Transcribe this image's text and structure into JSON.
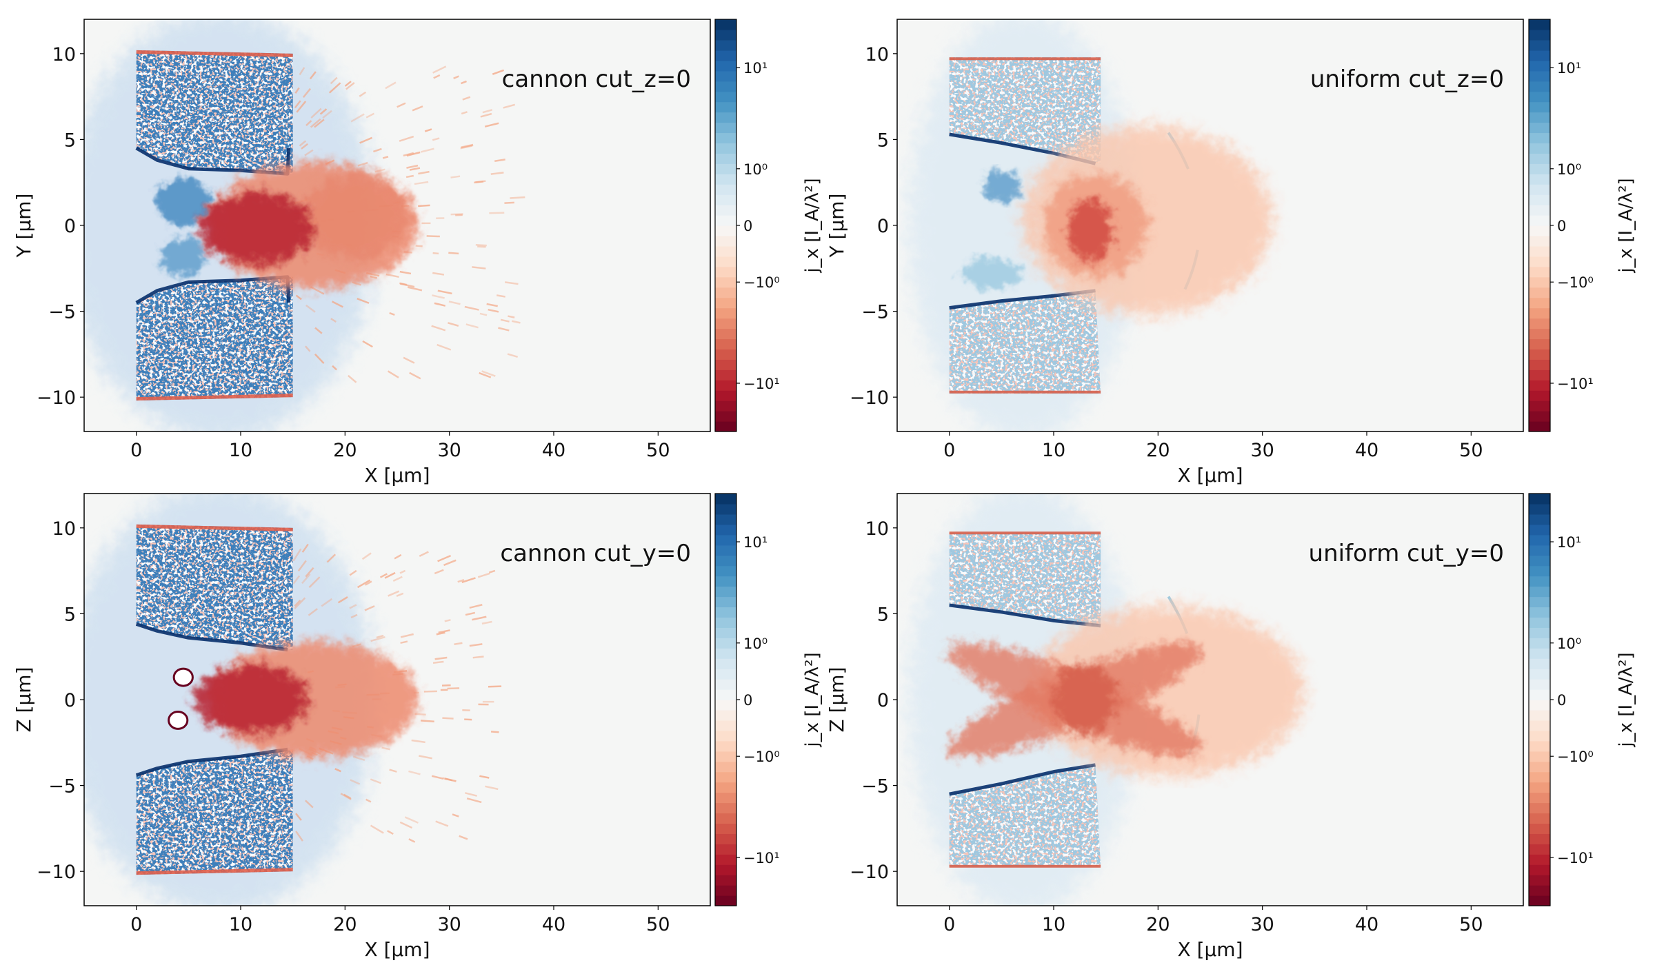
{
  "figure": {
    "colormap": [
      "#67001f",
      "#b2182b",
      "#d6604d",
      "#f4a582",
      "#fddbc7",
      "#f7f7f7",
      "#d1e5f0",
      "#92c5de",
      "#4393c3",
      "#2166ac",
      "#053061"
    ],
    "background_color": "#f5f6f5"
  },
  "chart_data": [
    {
      "type": "heatmap",
      "title": "cannon cut_z=0",
      "xlabel": "X  [μm]",
      "ylabel": "Y  [μm]",
      "xlim": [
        -5,
        55
      ],
      "ylim": [
        -12,
        12
      ],
      "xticks": [
        0,
        10,
        20,
        30,
        40,
        50
      ],
      "yticks": [
        10,
        5,
        0,
        -5,
        -10
      ],
      "grid": false,
      "colorbar": {
        "label": "j_x  [I_A/λ²]",
        "scale": "symlog",
        "linthresh": 1,
        "vmin": -30,
        "vmax": 30,
        "levels": 40,
        "ticks": [
          {
            "value": 10,
            "label": "10¹"
          },
          {
            "value": 1,
            "label": "10⁰"
          },
          {
            "value": 0,
            "label": "0"
          },
          {
            "value": -1,
            "label": "−10⁰"
          },
          {
            "value": -10,
            "label": "−10¹"
          }
        ]
      },
      "features": [
        {
          "kind": "ellipse",
          "cx": 8,
          "cy": 0,
          "rx": 15,
          "ry": 12.5,
          "color": "#c6dbef",
          "opacity": 0.7,
          "blur": 14
        },
        {
          "kind": "streaks",
          "x": [
            15,
            36
          ],
          "y": [
            -9,
            9
          ],
          "color": "#f4a582",
          "count": 140
        },
        {
          "kind": "ellipse",
          "cx": 4.5,
          "cy": 1.4,
          "rx": 2.6,
          "ry": 1.4,
          "color": "#4a8cc2",
          "opacity": 0.85,
          "blur": 4
        },
        {
          "kind": "ellipse",
          "cx": 4.5,
          "cy": -1.8,
          "rx": 2.2,
          "ry": 1.1,
          "color": "#5b9bcb",
          "opacity": 0.8,
          "blur": 4
        },
        {
          "kind": "target",
          "points": [
            [
              0,
              10.2
            ],
            [
              15,
              10
            ],
            [
              15,
              3
            ],
            [
              10,
              3.2
            ],
            [
              5,
              3.3
            ],
            [
              2,
              3.9
            ],
            [
              0,
              4.5
            ]
          ],
          "color": "#3d7fbb"
        },
        {
          "kind": "target",
          "points": [
            [
              0,
              -10.2
            ],
            [
              15,
              -10
            ],
            [
              15,
              -3
            ],
            [
              10,
              -3.2
            ],
            [
              5,
              -3.3
            ],
            [
              2,
              -3.9
            ],
            [
              0,
              -4.5
            ]
          ],
          "color": "#3d7fbb"
        },
        {
          "kind": "line",
          "points": [
            [
              0,
              10.1
            ],
            [
              15,
              9.9
            ]
          ],
          "color": "#e0604d",
          "width": 5
        },
        {
          "kind": "line",
          "points": [
            [
              0,
              -10.1
            ],
            [
              15,
              -9.9
            ]
          ],
          "color": "#e0604d",
          "width": 5
        },
        {
          "kind": "line",
          "points": [
            [
              0,
              4.5
            ],
            [
              2,
              3.8
            ],
            [
              5,
              3.3
            ],
            [
              10,
              3.2
            ],
            [
              14.5,
              3
            ],
            [
              14.6,
              4.5
            ]
          ],
          "color": "#08306b",
          "width": 5
        },
        {
          "kind": "line",
          "points": [
            [
              0,
              -4.5
            ],
            [
              2,
              -3.8
            ],
            [
              5,
              -3.3
            ],
            [
              10,
              -3.2
            ],
            [
              14.5,
              -3
            ],
            [
              14.6,
              -4.5
            ]
          ],
          "color": "#08306b",
          "width": 5
        },
        {
          "kind": "ellipse",
          "cx": 17,
          "cy": 0,
          "rx": 10,
          "ry": 3.7,
          "color": "#ee8a6e",
          "opacity": 0.85,
          "blur": 7
        },
        {
          "kind": "ellipse",
          "cx": 21,
          "cy": 0.5,
          "rx": 5,
          "ry": 2.5,
          "color": "#e7836a",
          "opacity": 0.7,
          "blur": 8
        },
        {
          "kind": "ellipse",
          "cx": 11.5,
          "cy": -0.2,
          "rx": 5.5,
          "ry": 2.1,
          "color": "#b8202e",
          "opacity": 0.85,
          "blur": 6
        }
      ]
    },
    {
      "type": "heatmap",
      "title": "uniform cut_z=0",
      "xlabel": "X  [μm]",
      "ylabel": "Y  [μm]",
      "xlim": [
        -5,
        55
      ],
      "ylim": [
        -12,
        12
      ],
      "xticks": [
        0,
        10,
        20,
        30,
        40,
        50
      ],
      "yticks": [
        10,
        5,
        0,
        -5,
        -10
      ],
      "grid": false,
      "colorbar": {
        "label": "j_x  [I_A/λ²]",
        "scale": "symlog",
        "linthresh": 1,
        "vmin": -30,
        "vmax": 30,
        "levels": 40,
        "ticks": [
          {
            "value": 10,
            "label": "10¹"
          },
          {
            "value": 1,
            "label": "10⁰"
          },
          {
            "value": 0,
            "label": "0"
          },
          {
            "value": -1,
            "label": "−10⁰"
          },
          {
            "value": -10,
            "label": "−10¹"
          }
        ]
      },
      "features": [
        {
          "kind": "ellipse",
          "cx": 7,
          "cy": 0,
          "rx": 11,
          "ry": 12.5,
          "color": "#d9e8f3",
          "opacity": 0.7,
          "blur": 14
        },
        {
          "kind": "ellipse",
          "cx": 5,
          "cy": 2.3,
          "rx": 1.8,
          "ry": 0.9,
          "color": "#5b9bcb",
          "opacity": 0.8,
          "blur": 4
        },
        {
          "kind": "ellipse",
          "cx": 4,
          "cy": -2.8,
          "rx": 3,
          "ry": 0.9,
          "color": "#92c5de",
          "opacity": 0.7,
          "blur": 4
        },
        {
          "kind": "target",
          "points": [
            [
              0,
              9.8
            ],
            [
              14.5,
              9.8
            ],
            [
              14.5,
              3.6
            ],
            [
              10,
              4.2
            ],
            [
              5,
              4.8
            ],
            [
              0,
              5.3
            ]
          ],
          "color": "#9ec8e0"
        },
        {
          "kind": "target",
          "points": [
            [
              0,
              -9.8
            ],
            [
              14.5,
              -9.8
            ],
            [
              14,
              -3.8
            ],
            [
              10,
              -4.1
            ],
            [
              5,
              -4.4
            ],
            [
              0,
              -4.8
            ]
          ],
          "color": "#9ec8e0"
        },
        {
          "kind": "line",
          "points": [
            [
              0,
              9.7
            ],
            [
              14.5,
              9.7
            ]
          ],
          "color": "#d6604d",
          "width": 4
        },
        {
          "kind": "line",
          "points": [
            [
              0,
              -9.7
            ],
            [
              14.5,
              -9.7
            ]
          ],
          "color": "#d6604d",
          "width": 4
        },
        {
          "kind": "line",
          "points": [
            [
              0,
              5.3
            ],
            [
              5,
              4.8
            ],
            [
              10,
              4.2
            ],
            [
              14,
              3.6
            ]
          ],
          "color": "#08306b",
          "width": 5
        },
        {
          "kind": "line",
          "points": [
            [
              0,
              -4.8
            ],
            [
              5,
              -4.4
            ],
            [
              10,
              -4.1
            ],
            [
              14,
              -3.8
            ]
          ],
          "color": "#08306b",
          "width": 5
        },
        {
          "kind": "arc",
          "points": [
            [
              21,
              5.4
            ],
            [
              27,
              0
            ],
            [
              21,
              -5.4
            ]
          ],
          "color": "#92c5de",
          "width": 4
        },
        {
          "kind": "ellipse",
          "cx": 19,
          "cy": 0.3,
          "rx": 12,
          "ry": 5.5,
          "color": "#fbc6ac",
          "opacity": 0.8,
          "blur": 10
        },
        {
          "kind": "ellipse",
          "cx": 14,
          "cy": 0,
          "rx": 5,
          "ry": 3,
          "color": "#f09a7d",
          "opacity": 0.8,
          "blur": 7
        },
        {
          "kind": "ellipse",
          "cx": 13.5,
          "cy": -0.3,
          "rx": 2.2,
          "ry": 1.8,
          "color": "#d24a3f",
          "opacity": 0.85,
          "blur": 5
        }
      ]
    },
    {
      "type": "heatmap",
      "title": "cannon cut_y=0",
      "xlabel": "X  [μm]",
      "ylabel": "Z  [μm]",
      "xlim": [
        -5,
        55
      ],
      "ylim": [
        -12,
        12
      ],
      "xticks": [
        0,
        10,
        20,
        30,
        40,
        50
      ],
      "yticks": [
        10,
        5,
        0,
        -5,
        -10
      ],
      "grid": false,
      "colorbar": {
        "label": "j_x  [I_A/λ²]",
        "scale": "symlog",
        "linthresh": 1,
        "vmin": -30,
        "vmax": 30,
        "levels": 40,
        "ticks": [
          {
            "value": 10,
            "label": "10¹"
          },
          {
            "value": 1,
            "label": "10⁰"
          },
          {
            "value": 0,
            "label": "0"
          },
          {
            "value": -1,
            "label": "−10⁰"
          },
          {
            "value": -10,
            "label": "−10¹"
          }
        ]
      },
      "features": [
        {
          "kind": "ellipse",
          "cx": 8,
          "cy": 0,
          "rx": 15,
          "ry": 12.5,
          "color": "#c6dbef",
          "opacity": 0.7,
          "blur": 14
        },
        {
          "kind": "streaks",
          "x": [
            15,
            34
          ],
          "y": [
            -9,
            9
          ],
          "color": "#f4a582",
          "count": 120
        },
        {
          "kind": "target",
          "points": [
            [
              0,
              10.2
            ],
            [
              15,
              10
            ],
            [
              15,
              2.9
            ],
            [
              10,
              3.3
            ],
            [
              5,
              3.6
            ],
            [
              2,
              4
            ],
            [
              0,
              4.4
            ]
          ],
          "color": "#3d7fbb"
        },
        {
          "kind": "target",
          "points": [
            [
              0,
              -10.2
            ],
            [
              15,
              -10
            ],
            [
              15,
              -2.9
            ],
            [
              10,
              -3.3
            ],
            [
              5,
              -3.6
            ],
            [
              2,
              -4
            ],
            [
              0,
              -4.4
            ]
          ],
          "color": "#3d7fbb"
        },
        {
          "kind": "line",
          "points": [
            [
              0,
              10.1
            ],
            [
              15,
              9.9
            ]
          ],
          "color": "#e0604d",
          "width": 5
        },
        {
          "kind": "line",
          "points": [
            [
              0,
              -10.1
            ],
            [
              15,
              -9.9
            ]
          ],
          "color": "#e0604d",
          "width": 5
        },
        {
          "kind": "line",
          "points": [
            [
              0,
              4.4
            ],
            [
              2,
              4
            ],
            [
              5,
              3.6
            ],
            [
              10,
              3.3
            ],
            [
              14.5,
              2.9
            ]
          ],
          "color": "#08306b",
          "width": 5
        },
        {
          "kind": "line",
          "points": [
            [
              0,
              -4.4
            ],
            [
              2,
              -4
            ],
            [
              5,
              -3.6
            ],
            [
              10,
              -3.3
            ],
            [
              14.5,
              -2.9
            ]
          ],
          "color": "#08306b",
          "width": 5
        },
        {
          "kind": "ellipse",
          "cx": 17,
          "cy": 0,
          "rx": 10,
          "ry": 3.4,
          "color": "#ee8a6e",
          "opacity": 0.85,
          "blur": 7
        },
        {
          "kind": "ellipse",
          "cx": 11,
          "cy": 0,
          "rx": 5.5,
          "ry": 2,
          "color": "#b8202e",
          "opacity": 0.85,
          "blur": 6
        },
        {
          "kind": "hole",
          "cx": 4.5,
          "cy": 1.3,
          "rx": 0.9,
          "ry": 0.5,
          "color": "#ffffff"
        },
        {
          "kind": "hole",
          "cx": 4,
          "cy": -1.2,
          "rx": 0.9,
          "ry": 0.5,
          "color": "#ffffff"
        }
      ]
    },
    {
      "type": "heatmap",
      "title": "uniform cut_y=0",
      "xlabel": "X  [μm]",
      "ylabel": "Z  [μm]",
      "xlim": [
        -5,
        55
      ],
      "ylim": [
        -12,
        12
      ],
      "xticks": [
        0,
        10,
        20,
        30,
        40,
        50
      ],
      "yticks": [
        10,
        5,
        0,
        -5,
        -10
      ],
      "grid": false,
      "colorbar": {
        "label": "j_x  [I_A/λ²]",
        "scale": "symlog",
        "linthresh": 1,
        "vmin": -30,
        "vmax": 30,
        "levels": 40,
        "ticks": [
          {
            "value": 10,
            "label": "10¹"
          },
          {
            "value": 1,
            "label": "10⁰"
          },
          {
            "value": 0,
            "label": "0"
          },
          {
            "value": -1,
            "label": "−10⁰"
          },
          {
            "value": -10,
            "label": "−10¹"
          }
        ]
      },
      "features": [
        {
          "kind": "ellipse",
          "cx": 7,
          "cy": 0,
          "rx": 11,
          "ry": 12.5,
          "color": "#d9e8f3",
          "opacity": 0.7,
          "blur": 14
        },
        {
          "kind": "target",
          "points": [
            [
              0,
              9.7
            ],
            [
              14.5,
              9.7
            ],
            [
              14.5,
              4.3
            ],
            [
              10,
              4.6
            ],
            [
              5,
              5.1
            ],
            [
              0,
              5.5
            ]
          ],
          "color": "#9ec8e0"
        },
        {
          "kind": "target",
          "points": [
            [
              0,
              -9.7
            ],
            [
              14.5,
              -9.7
            ],
            [
              14,
              -3.8
            ],
            [
              10,
              -4.2
            ],
            [
              5,
              -4.9
            ],
            [
              0,
              -5.5
            ]
          ],
          "color": "#9ec8e0"
        },
        {
          "kind": "line",
          "points": [
            [
              0,
              9.7
            ],
            [
              14.5,
              9.7
            ]
          ],
          "color": "#d6604d",
          "width": 4
        },
        {
          "kind": "line",
          "points": [
            [
              0,
              -9.7
            ],
            [
              14.5,
              -9.7
            ]
          ],
          "color": "#d6604d",
          "width": 4
        },
        {
          "kind": "line",
          "points": [
            [
              0,
              5.5
            ],
            [
              5,
              5.1
            ],
            [
              10,
              4.6
            ],
            [
              14.5,
              4.3
            ]
          ],
          "color": "#08306b",
          "width": 5
        },
        {
          "kind": "line",
          "points": [
            [
              0,
              -5.5
            ],
            [
              5,
              -4.9
            ],
            [
              10,
              -4.2
            ],
            [
              14,
              -3.8
            ]
          ],
          "color": "#08306b",
          "width": 5
        },
        {
          "kind": "arc",
          "points": [
            [
              21,
              6
            ],
            [
              27,
              0
            ],
            [
              21,
              -5.5
            ]
          ],
          "color": "#92c5de",
          "width": 4
        },
        {
          "kind": "ellipse",
          "cx": 21,
          "cy": 0.5,
          "rx": 13,
          "ry": 5,
          "color": "#fbc6ac",
          "opacity": 0.8,
          "blur": 10
        },
        {
          "kind": "ellipse",
          "cx": 12,
          "cy": 0,
          "rx": 13,
          "ry": 1.6,
          "angle": -22,
          "color": "#e37a63",
          "opacity": 0.8,
          "blur": 6
        },
        {
          "kind": "ellipse",
          "cx": 12,
          "cy": 0,
          "rx": 13,
          "ry": 1.6,
          "angle": 22,
          "color": "#e37a63",
          "opacity": 0.8,
          "blur": 6
        },
        {
          "kind": "ellipse",
          "cx": 13,
          "cy": 0,
          "rx": 3,
          "ry": 2,
          "color": "#d6604d",
          "opacity": 0.85,
          "blur": 5
        }
      ]
    }
  ]
}
